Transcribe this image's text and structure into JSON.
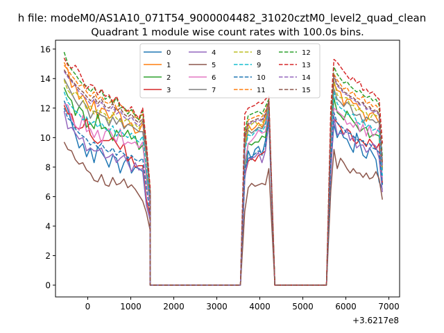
{
  "chart_data": {
    "type": "line",
    "suptitle": "h file: modeM0/AS1A10_071T54_9000004482_31020cztM0_level2_quad_clean",
    "title": "Quadrant 1 module wise count rates with 100.0s bins.",
    "xlabel": "",
    "ylabel": "",
    "offset_label": "+3.6217e8",
    "xlim": [
      -750,
      7250
    ],
    "ylim": [
      -0.8,
      16.6
    ],
    "x_ticks": [
      0,
      1000,
      2000,
      3000,
      4000,
      5000,
      6000,
      7000
    ],
    "x_tick_labels": [
      "0",
      "1000",
      "2000",
      "3000",
      "4000",
      "5000",
      "6000",
      "7000"
    ],
    "y_ticks": [
      0,
      2,
      4,
      6,
      8,
      10,
      12,
      14,
      16
    ],
    "y_tick_labels": [
      "0",
      "2",
      "4",
      "6",
      "8",
      "10",
      "12",
      "14",
      "16"
    ],
    "grid": false,
    "legend_position": "top-center",
    "gaps": [
      [
        1450,
        3550
      ],
      [
        4350,
        5550
      ]
    ],
    "series": [
      {
        "name": "0",
        "color": "#1f77b4",
        "dash": "solid",
        "seg1": [
          12.5,
          11.9,
          11.0,
          10.2,
          9.3,
          9.6,
          8.7,
          9.3,
          8.3,
          9.4,
          9.0,
          8.6,
          8.0,
          8.8,
          8.6,
          7.6,
          8.3,
          8.7,
          7.6,
          8.0,
          7.9,
          7.7,
          5.4,
          4.4
        ],
        "seg2": [
          7.2,
          9.1,
          8.5,
          9.2,
          9.4,
          8.8,
          9.8,
          11.8
        ],
        "seg3": [
          8.1,
          10.9,
          10.0,
          10.5,
          10.0,
          9.9,
          9.4,
          9.0,
          10.3,
          9.6,
          8.8,
          8.6,
          9.3,
          8.9,
          8.5,
          7.0,
          6.5
        ]
      },
      {
        "name": "1",
        "color": "#ff7f0e",
        "dash": "solid",
        "seg1": [
          14.9,
          14.6,
          13.4,
          13.6,
          12.6,
          12.9,
          12.4,
          11.8,
          12.5,
          11.3,
          12.0,
          11.9,
          11.3,
          11.5,
          12.0,
          11.6,
          10.7,
          10.9,
          11.0,
          10.3,
          10.4,
          11.0,
          8.7,
          6.0
        ],
        "seg2": [
          9.6,
          10.9,
          10.5,
          10.7,
          11.0,
          10.7,
          11.3,
          12.3
        ],
        "seg3": [
          10.6,
          13.7,
          13.2,
          13.1,
          12.2,
          12.6,
          12.6,
          12.3,
          12.3,
          11.9,
          11.7,
          11.1,
          11.6,
          11.7,
          11.4,
          11.0,
          7.9
        ]
      },
      {
        "name": "2",
        "color": "#2ca02c",
        "dash": "solid",
        "seg1": [
          13.4,
          12.8,
          12.5,
          11.5,
          12.1,
          11.8,
          10.7,
          11.0,
          10.6,
          11.6,
          10.6,
          10.7,
          10.4,
          9.8,
          10.5,
          10.1,
          10.1,
          10.5,
          9.9,
          10.1,
          9.2,
          9.5,
          7.5,
          5.6
        ],
        "seg2": [
          8.0,
          9.6,
          9.5,
          9.7,
          9.7,
          10.1,
          10.0,
          11.7
        ],
        "seg3": [
          9.3,
          12.7,
          11.7,
          11.5,
          11.2,
          11.8,
          11.4,
          11.1,
          10.8,
          10.4,
          10.6,
          10.7,
          10.0,
          10.2,
          10.2,
          10.1,
          6.8
        ]
      },
      {
        "name": "3",
        "color": "#d62728",
        "dash": "solid",
        "seg1": [
          12.2,
          11.6,
          11.6,
          10.7,
          10.6,
          10.7,
          11.3,
          10.2,
          9.8,
          9.6,
          9.8,
          9.8,
          9.8,
          10.0,
          9.6,
          9.2,
          9.6,
          8.4,
          8.7,
          8.0,
          8.1,
          8.1,
          5.8,
          4.7
        ],
        "seg2": [
          7.4,
          8.4,
          8.6,
          8.4,
          8.8,
          8.9,
          9.1,
          11.5
        ],
        "seg3": [
          8.3,
          11.3,
          11.0,
          10.7,
          10.2,
          10.6,
          10.4,
          9.8,
          9.6,
          9.9,
          9.7,
          9.4,
          9.9,
          9.6,
          9.2,
          9.6,
          6.9
        ]
      },
      {
        "name": "4",
        "color": "#9467bd",
        "dash": "solid",
        "seg1": [
          11.8,
          10.6,
          10.7,
          10.3,
          9.9,
          10.0,
          9.1,
          9.3,
          9.1,
          9.1,
          9.3,
          8.6,
          8.7,
          8.9,
          8.3,
          8.6,
          8.8,
          8.3,
          7.7,
          8.3,
          7.8,
          7.9,
          5.4,
          4.4
        ],
        "seg2": [
          7.4,
          8.6,
          8.6,
          8.7,
          9.0,
          8.3,
          9.1,
          11.1
        ],
        "seg3": [
          7.5,
          11.4,
          10.2,
          10.3,
          10.2,
          10.6,
          9.8,
          10.1,
          9.3,
          9.5,
          9.5,
          9.0,
          9.2,
          9.6,
          9.4,
          8.6,
          6.3
        ]
      },
      {
        "name": "5",
        "color": "#8c564b",
        "dash": "solid",
        "seg1": [
          9.7,
          9.2,
          9.1,
          8.5,
          8.2,
          8.3,
          7.8,
          7.6,
          7.1,
          7.0,
          7.5,
          6.8,
          6.7,
          7.3,
          6.8,
          6.9,
          7.2,
          6.6,
          6.8,
          6.5,
          6.1,
          5.7,
          4.9,
          3.7
        ],
        "seg2": [
          5.0,
          6.6,
          6.9,
          6.7,
          6.8,
          6.9,
          6.8,
          7.9
        ],
        "seg3": [
          6.4,
          9.2,
          7.9,
          8.6,
          8.3,
          7.9,
          7.6,
          7.9,
          7.6,
          7.6,
          7.3,
          7.6,
          7.2,
          7.3,
          7.7,
          7.2,
          5.8
        ]
      },
      {
        "name": "6",
        "color": "#e377c2",
        "dash": "solid",
        "seg1": [
          12.3,
          12.2,
          11.3,
          10.8,
          10.5,
          11.5,
          10.4,
          10.6,
          10.0,
          10.5,
          9.6,
          10.4,
          10.6,
          10.1,
          9.7,
          10.6,
          9.5,
          9.7,
          9.6,
          9.7,
          9.3,
          9.7,
          7.1,
          5.3
        ],
        "seg2": [
          8.3,
          9.6,
          9.8,
          10.1,
          10.5,
          10.3,
          10.4,
          11.9
        ],
        "seg3": [
          9.1,
          12.0,
          11.8,
          11.6,
          11.4,
          10.9,
          11.0,
          10.7,
          11.1,
          10.4,
          10.9,
          10.1,
          10.8,
          10.1,
          10.3,
          10.7,
          7.2
        ]
      },
      {
        "name": "7",
        "color": "#7f7f7f",
        "dash": "solid",
        "seg1": [
          14.0,
          13.5,
          13.0,
          12.5,
          12.1,
          12.5,
          12.1,
          11.3,
          11.8,
          11.7,
          11.5,
          11.4,
          10.8,
          11.4,
          10.9,
          11.3,
          10.6,
          10.9,
          10.8,
          10.6,
          10.4,
          10.4,
          8.6,
          6.2
        ],
        "seg2": [
          9.2,
          10.5,
          10.3,
          10.5,
          10.7,
          10.6,
          11.0,
          12.0
        ],
        "seg3": [
          9.8,
          13.3,
          12.6,
          12.4,
          12.1,
          12.4,
          12.2,
          11.6,
          11.5,
          11.6,
          11.0,
          11.4,
          11.2,
          11.2,
          11.0,
          11.1,
          7.8
        ]
      },
      {
        "name": "8",
        "color": "#bcbd22",
        "dash": "dashed",
        "seg1": [
          13.9,
          13.2,
          12.9,
          13.1,
          12.8,
          12.6,
          11.9,
          12.2,
          11.6,
          11.9,
          11.7,
          11.6,
          11.0,
          11.7,
          11.3,
          11.1,
          11.1,
          11.3,
          10.8,
          10.9,
          10.6,
          11.2,
          8.6,
          6.0
        ],
        "seg2": [
          9.5,
          10.6,
          10.9,
          11.1,
          10.8,
          10.9,
          11.5,
          12.3
        ],
        "seg3": [
          10.4,
          13.9,
          12.9,
          12.7,
          12.7,
          12.7,
          12.2,
          12.2,
          11.8,
          12.0,
          11.7,
          11.7,
          11.2,
          11.6,
          11.5,
          11.4,
          8.0
        ]
      },
      {
        "name": "9",
        "color": "#17becf",
        "dash": "dashed",
        "seg1": [
          13.1,
          12.4,
          12.1,
          11.8,
          11.6,
          11.2,
          11.4,
          10.9,
          11.1,
          10.7,
          11.0,
          10.6,
          10.4,
          10.8,
          10.1,
          10.5,
          10.2,
          10.0,
          10.3,
          9.9,
          9.7,
          10.1,
          7.9,
          5.6
        ],
        "seg2": [
          9.1,
          10.2,
          10.1,
          10.4,
          10.6,
          10.4,
          10.8,
          12.0
        ],
        "seg3": [
          9.7,
          13.1,
          12.3,
          12.0,
          11.9,
          11.6,
          11.5,
          11.6,
          11.1,
          10.9,
          11.2,
          10.7,
          10.9,
          10.5,
          10.6,
          10.4,
          7.4
        ]
      },
      {
        "name": "10",
        "color": "#1f77b4",
        "dash": "dashed",
        "seg1": [
          12.0,
          11.3,
          11.1,
          10.6,
          10.3,
          10.1,
          9.9,
          9.5,
          9.7,
          9.3,
          9.6,
          9.2,
          9.0,
          9.3,
          8.8,
          9.1,
          8.9,
          8.6,
          8.8,
          8.5,
          8.4,
          8.6,
          6.6,
          4.8
        ],
        "seg2": [
          7.9,
          8.6,
          8.7,
          8.9,
          9.1,
          9.0,
          9.4,
          11.4
        ],
        "seg3": [
          8.4,
          11.7,
          11.0,
          10.8,
          10.6,
          10.3,
          10.3,
          10.1,
          9.9,
          9.7,
          9.8,
          9.5,
          9.6,
          9.3,
          9.2,
          9.0,
          6.8
        ]
      },
      {
        "name": "11",
        "color": "#ff7f0e",
        "dash": "dashed",
        "seg1": [
          15.1,
          14.6,
          14.2,
          13.9,
          13.5,
          13.6,
          13.1,
          12.8,
          13.1,
          12.6,
          12.8,
          12.4,
          12.3,
          12.6,
          12.0,
          12.3,
          11.9,
          11.7,
          11.9,
          11.4,
          11.2,
          11.6,
          9.3,
          6.3
        ],
        "seg2": [
          10.2,
          11.2,
          11.3,
          11.4,
          11.5,
          11.4,
          11.8,
          12.5
        ],
        "seg3": [
          11.0,
          14.3,
          13.9,
          13.6,
          13.3,
          13.4,
          13.0,
          13.1,
          12.7,
          12.6,
          12.8,
          12.3,
          12.4,
          12.1,
          12.2,
          11.9,
          8.3
        ]
      },
      {
        "name": "12",
        "color": "#2ca02c",
        "dash": "dashed",
        "seg1": [
          15.8,
          15.0,
          14.6,
          14.3,
          13.9,
          13.6,
          13.5,
          13.1,
          13.4,
          12.9,
          13.2,
          12.6,
          12.8,
          12.3,
          12.7,
          12.0,
          12.1,
          11.6,
          11.9,
          11.5,
          11.2,
          11.8,
          9.4,
          6.4
        ],
        "seg2": [
          10.4,
          11.5,
          11.6,
          11.7,
          11.8,
          11.6,
          12.1,
          12.6
        ],
        "seg3": [
          11.4,
          14.8,
          14.3,
          14.0,
          13.7,
          13.8,
          13.5,
          13.3,
          13.1,
          13.2,
          12.9,
          12.7,
          12.8,
          12.5,
          12.6,
          12.2,
          8.6
        ]
      },
      {
        "name": "13",
        "color": "#d62728",
        "dash": "dashed",
        "seg1": [
          15.4,
          14.9,
          14.7,
          14.9,
          14.5,
          13.9,
          13.3,
          13.6,
          13.5,
          12.9,
          13.3,
          12.8,
          12.9,
          12.4,
          12.8,
          12.2,
          12.0,
          11.8,
          12.1,
          11.6,
          11.3,
          12.0,
          9.6,
          6.6
        ],
        "seg2": [
          11.6,
          12.0,
          12.1,
          12.2,
          12.4,
          12.3,
          12.6,
          12.8
        ],
        "seg3": [
          12.0,
          15.3,
          15.1,
          14.8,
          14.5,
          14.2,
          13.9,
          14.1,
          13.7,
          13.8,
          13.2,
          13.3,
          13.0,
          13.1,
          12.8,
          12.6,
          9.6
        ]
      },
      {
        "name": "14",
        "color": "#9467bd",
        "dash": "dashed",
        "seg1": [
          14.5,
          14.1,
          13.8,
          13.5,
          13.1,
          12.9,
          12.6,
          12.3,
          12.6,
          12.1,
          12.4,
          11.9,
          11.8,
          12.1,
          11.6,
          11.8,
          11.4,
          11.2,
          11.4,
          11.0,
          10.8,
          11.1,
          8.9,
          6.1
        ],
        "seg2": [
          9.9,
          10.9,
          11.0,
          11.1,
          11.2,
          11.1,
          11.5,
          12.4
        ],
        "seg3": [
          10.6,
          14.1,
          13.5,
          13.3,
          13.0,
          12.9,
          12.7,
          12.6,
          12.4,
          12.2,
          12.3,
          11.9,
          12.0,
          11.7,
          11.8,
          11.5,
          8.1
        ]
      },
      {
        "name": "15",
        "color": "#8c564b",
        "dash": "dashed",
        "seg1": [
          14.6,
          14.2,
          13.9,
          13.6,
          13.3,
          13.1,
          12.8,
          12.5,
          12.8,
          12.3,
          12.6,
          12.1,
          12.0,
          12.3,
          11.8,
          12.0,
          11.6,
          11.4,
          11.6,
          11.2,
          11.0,
          11.3,
          9.0,
          6.2
        ],
        "seg2": [
          10.0,
          11.0,
          11.1,
          11.2,
          11.3,
          11.2,
          11.6,
          12.5
        ],
        "seg3": [
          10.7,
          14.2,
          13.6,
          13.4,
          13.1,
          13.0,
          12.8,
          12.7,
          12.5,
          12.3,
          12.4,
          12.0,
          12.1,
          11.8,
          11.9,
          11.6,
          8.2
        ]
      }
    ]
  }
}
